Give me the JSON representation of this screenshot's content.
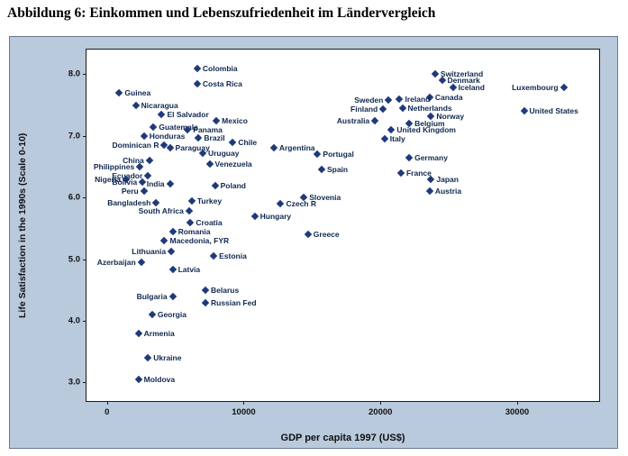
{
  "figure": {
    "caption": "Abbildung 6: Einkommen und Lebenszufriedenheit im Ländervergleich"
  },
  "chart_data": {
    "type": "scatter",
    "title": "",
    "xlabel": "GDP per capita 1997 (US$)",
    "ylabel": "Life Satisfaction in the 1990s (Scale 0-10)",
    "xlim": [
      -1500,
      36000
    ],
    "ylim": [
      2.7,
      8.4
    ],
    "x_tick_values": [
      0,
      10000,
      20000,
      30000
    ],
    "x_tick_labels": [
      "0",
      "10000",
      "20000",
      "30000"
    ],
    "y_tick_values": [
      3.0,
      4.0,
      5.0,
      6.0,
      7.0,
      8.0
    ],
    "y_tick_labels": [
      "3.0",
      "4.0",
      "5.0",
      "6.0",
      "7.0",
      "8.0"
    ],
    "marker": "diamond",
    "marker_color": "#1f3a7a",
    "panel_bg": "#b9cadd",
    "plot_bg": "#ffffff",
    "grid": false,
    "legend": "none",
    "points": [
      {
        "label": "Colombia",
        "gdp": 6600,
        "ls": 8.1,
        "label_side": "right"
      },
      {
        "label": "Switzerland",
        "gdp": 24000,
        "ls": 8.0,
        "label_side": "right"
      },
      {
        "label": "Costa Rica",
        "gdp": 6600,
        "ls": 7.85,
        "label_side": "right"
      },
      {
        "label": "Denmark",
        "gdp": 24500,
        "ls": 7.9,
        "label_side": "right"
      },
      {
        "label": "Iceland",
        "gdp": 25300,
        "ls": 7.78,
        "label_side": "right"
      },
      {
        "label": "Luxembourg",
        "gdp": 33400,
        "ls": 7.78,
        "label_side": "left"
      },
      {
        "label": "Guinea",
        "gdp": 900,
        "ls": 7.7,
        "label_side": "right"
      },
      {
        "label": "Canada",
        "gdp": 23600,
        "ls": 7.63,
        "label_side": "right"
      },
      {
        "label": "Ireland",
        "gdp": 21400,
        "ls": 7.6,
        "label_side": "right"
      },
      {
        "label": "Sweden",
        "gdp": 20600,
        "ls": 7.58,
        "label_side": "left"
      },
      {
        "label": "Nicaragua",
        "gdp": 2100,
        "ls": 7.5,
        "label_side": "right"
      },
      {
        "label": "Netherlands",
        "gdp": 21600,
        "ls": 7.45,
        "label_side": "right"
      },
      {
        "label": "Finland",
        "gdp": 20200,
        "ls": 7.44,
        "label_side": "left"
      },
      {
        "label": "United States",
        "gdp": 30500,
        "ls": 7.4,
        "label_side": "right"
      },
      {
        "label": "El Salvador",
        "gdp": 4000,
        "ls": 7.35,
        "label_side": "right"
      },
      {
        "label": "Norway",
        "gdp": 23700,
        "ls": 7.32,
        "label_side": "right"
      },
      {
        "label": "Mexico",
        "gdp": 8000,
        "ls": 7.25,
        "label_side": "right"
      },
      {
        "label": "Australia",
        "gdp": 19600,
        "ls": 7.25,
        "label_side": "left"
      },
      {
        "label": "Belgium",
        "gdp": 22100,
        "ls": 7.2,
        "label_side": "right"
      },
      {
        "label": "Guatemala",
        "gdp": 3400,
        "ls": 7.15,
        "label_side": "right"
      },
      {
        "label": "Panama",
        "gdp": 5900,
        "ls": 7.1,
        "label_side": "right"
      },
      {
        "label": "United Kingdom",
        "gdp": 20800,
        "ls": 7.1,
        "label_side": "right"
      },
      {
        "label": "Honduras",
        "gdp": 2700,
        "ls": 7.0,
        "label_side": "right"
      },
      {
        "label": "Brazil",
        "gdp": 6700,
        "ls": 6.97,
        "label_side": "right"
      },
      {
        "label": "Italy",
        "gdp": 20300,
        "ls": 6.95,
        "label_side": "right"
      },
      {
        "label": "Chile",
        "gdp": 9200,
        "ls": 6.9,
        "label_side": "right"
      },
      {
        "label": "Dominican R",
        "gdp": 4200,
        "ls": 6.85,
        "label_side": "left"
      },
      {
        "label": "Paraguay",
        "gdp": 4600,
        "ls": 6.8,
        "label_side": "right"
      },
      {
        "label": "Argentina",
        "gdp": 12200,
        "ls": 6.8,
        "label_side": "right"
      },
      {
        "label": "Uruguay",
        "gdp": 7000,
        "ls": 6.72,
        "label_side": "right"
      },
      {
        "label": "Portugal",
        "gdp": 15400,
        "ls": 6.7,
        "label_side": "right"
      },
      {
        "label": "Germany",
        "gdp": 22100,
        "ls": 6.65,
        "label_side": "right"
      },
      {
        "label": "China",
        "gdp": 3100,
        "ls": 6.6,
        "label_side": "left"
      },
      {
        "label": "Venezuela",
        "gdp": 7500,
        "ls": 6.55,
        "label_side": "right"
      },
      {
        "label": "Philippines",
        "gdp": 2400,
        "ls": 6.5,
        "label_side": "left"
      },
      {
        "label": "Spain",
        "gdp": 15700,
        "ls": 6.45,
        "label_side": "right"
      },
      {
        "label": "France",
        "gdp": 21500,
        "ls": 6.4,
        "label_side": "right"
      },
      {
        "label": "Ecuador",
        "gdp": 3000,
        "ls": 6.35,
        "label_side": "left"
      },
      {
        "label": "Nigeria",
        "gdp": 1400,
        "ls": 6.3,
        "label_side": "left"
      },
      {
        "label": "Japan",
        "gdp": 23700,
        "ls": 6.3,
        "label_side": "right"
      },
      {
        "label": "Bolivia",
        "gdp": 2600,
        "ls": 6.25,
        "label_side": "left"
      },
      {
        "label": "India",
        "gdp": 4600,
        "ls": 6.22,
        "label_side": "left"
      },
      {
        "label": "Poland",
        "gdp": 7900,
        "ls": 6.2,
        "label_side": "right"
      },
      {
        "label": "Peru",
        "gdp": 2700,
        "ls": 6.1,
        "label_side": "left"
      },
      {
        "label": "Austria",
        "gdp": 23600,
        "ls": 6.1,
        "label_side": "right"
      },
      {
        "label": "Slovenia",
        "gdp": 14400,
        "ls": 6.0,
        "label_side": "right"
      },
      {
        "label": "Bangladesh",
        "gdp": 3600,
        "ls": 5.92,
        "label_side": "left"
      },
      {
        "label": "Turkey",
        "gdp": 6200,
        "ls": 5.95,
        "label_side": "right"
      },
      {
        "label": "Czech R",
        "gdp": 12700,
        "ls": 5.9,
        "label_side": "right"
      },
      {
        "label": "South Africa",
        "gdp": 6000,
        "ls": 5.78,
        "label_side": "left"
      },
      {
        "label": "Hungary",
        "gdp": 10800,
        "ls": 5.7,
        "label_side": "right"
      },
      {
        "label": "Croatia",
        "gdp": 6100,
        "ls": 5.6,
        "label_side": "right"
      },
      {
        "label": "Romania",
        "gdp": 4800,
        "ls": 5.45,
        "label_side": "right"
      },
      {
        "label": "Greece",
        "gdp": 14700,
        "ls": 5.4,
        "label_side": "right"
      },
      {
        "label": "Macedonia, FYR",
        "gdp": 4200,
        "ls": 5.3,
        "label_side": "right"
      },
      {
        "label": "Lithuania",
        "gdp": 4700,
        "ls": 5.12,
        "label_side": "left"
      },
      {
        "label": "Estonia",
        "gdp": 7800,
        "ls": 5.05,
        "label_side": "right"
      },
      {
        "label": "Azerbaijan",
        "gdp": 2500,
        "ls": 4.95,
        "label_side": "left"
      },
      {
        "label": "Latvia",
        "gdp": 4800,
        "ls": 4.83,
        "label_side": "right"
      },
      {
        "label": "Belarus",
        "gdp": 7200,
        "ls": 4.5,
        "label_side": "right"
      },
      {
        "label": "Bulgaria",
        "gdp": 4800,
        "ls": 4.4,
        "label_side": "left"
      },
      {
        "label": "Russian Fed",
        "gdp": 7200,
        "ls": 4.3,
        "label_side": "right"
      },
      {
        "label": "Georgia",
        "gdp": 3300,
        "ls": 4.1,
        "label_side": "right"
      },
      {
        "label": "Armenia",
        "gdp": 2300,
        "ls": 3.8,
        "label_side": "right"
      },
      {
        "label": "Ukraine",
        "gdp": 3000,
        "ls": 3.4,
        "label_side": "right"
      },
      {
        "label": "Moldova",
        "gdp": 2300,
        "ls": 3.05,
        "label_side": "right"
      }
    ]
  }
}
